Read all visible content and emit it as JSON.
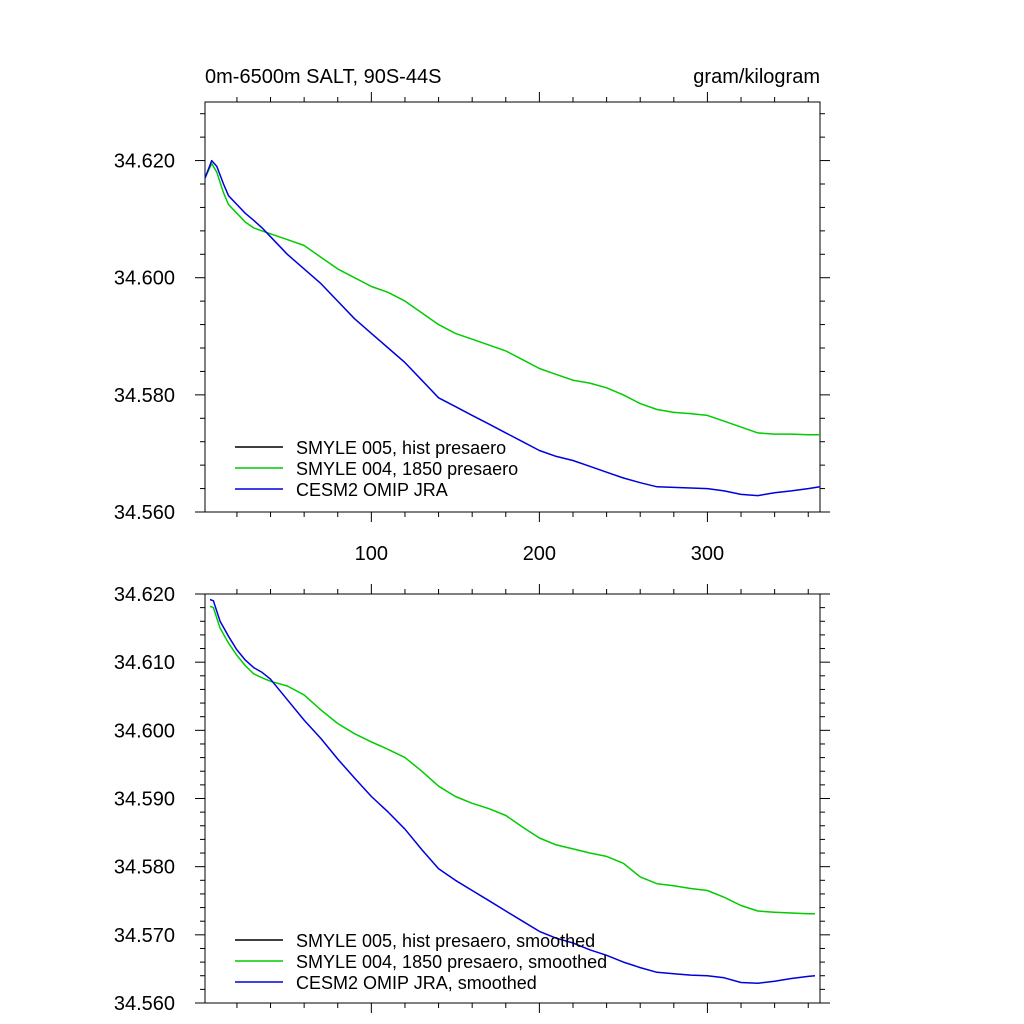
{
  "chart_data": [
    {
      "type": "line",
      "title": "0m-6500m SALT, 90S-44S",
      "units": "gram/kilogram",
      "xlabel": "",
      "ylabel": "",
      "xlim": [
        1,
        367
      ],
      "ylim": [
        34.56,
        34.63
      ],
      "x_ticks": [
        100,
        200,
        300
      ],
      "x_tick_labels": [
        "100",
        "200",
        "300"
      ],
      "y_ticks": [
        34.56,
        34.58,
        34.6,
        34.62
      ],
      "y_tick_labels": [
        "34.560",
        "34.580",
        "34.600",
        "34.620"
      ],
      "legend": [
        "SMYLE 005, hist presaero",
        "SMYLE 004, 1850 presaero",
        "CESM2 OMIP JRA"
      ],
      "legend_position": "bottom-left",
      "series": [
        {
          "name": "SMYLE 005, hist presaero",
          "color": "#000000",
          "x": [],
          "values": []
        },
        {
          "name": "SMYLE 004, 1850 presaero",
          "color": "#00cc00",
          "x": [
            1,
            5,
            8,
            12,
            15,
            20,
            25,
            30,
            35,
            40,
            50,
            60,
            70,
            80,
            90,
            100,
            110,
            120,
            130,
            140,
            150,
            160,
            170,
            180,
            190,
            200,
            210,
            220,
            230,
            240,
            250,
            260,
            270,
            280,
            290,
            300,
            310,
            320,
            330,
            340,
            350,
            360,
            367
          ],
          "values": [
            34.617,
            34.6195,
            34.618,
            34.6145,
            34.6125,
            34.611,
            34.6095,
            34.6085,
            34.608,
            34.6075,
            34.6065,
            34.6055,
            34.6035,
            34.6015,
            34.6,
            34.5985,
            34.5975,
            34.596,
            34.594,
            34.592,
            34.5905,
            34.5895,
            34.5885,
            34.5875,
            34.586,
            34.5845,
            34.5835,
            34.5825,
            34.582,
            34.5812,
            34.58,
            34.5785,
            34.5775,
            34.577,
            34.5768,
            34.5765,
            34.5755,
            34.5745,
            34.5735,
            34.5733,
            34.5733,
            34.5732,
            34.5732
          ]
        },
        {
          "name": "CESM2 OMIP JRA",
          "color": "#0000dd",
          "x": [
            1,
            5,
            8,
            12,
            15,
            20,
            25,
            30,
            35,
            40,
            50,
            60,
            70,
            80,
            90,
            100,
            110,
            120,
            130,
            140,
            150,
            160,
            170,
            180,
            190,
            200,
            210,
            220,
            230,
            240,
            250,
            260,
            270,
            280,
            290,
            300,
            310,
            320,
            330,
            340,
            350,
            360,
            367
          ],
          "values": [
            34.617,
            34.62,
            34.619,
            34.616,
            34.614,
            34.6125,
            34.611,
            34.6098,
            34.6085,
            34.607,
            34.604,
            34.6015,
            34.599,
            34.596,
            34.593,
            34.5905,
            34.588,
            34.5855,
            34.5825,
            34.5795,
            34.578,
            34.5765,
            34.575,
            34.5735,
            34.572,
            34.5705,
            34.5695,
            34.5688,
            34.5678,
            34.5668,
            34.5658,
            34.565,
            34.5643,
            34.5642,
            34.5641,
            34.564,
            34.5636,
            34.563,
            34.5628,
            34.5633,
            34.5636,
            34.564,
            34.5643
          ]
        }
      ]
    },
    {
      "type": "line",
      "title": "",
      "xlabel": "",
      "ylabel": "",
      "xlim": [
        1,
        367
      ],
      "ylim": [
        34.56,
        34.62
      ],
      "x_ticks": [
        100,
        200,
        300
      ],
      "x_tick_labels": [],
      "y_ticks": [
        34.56,
        34.57,
        34.58,
        34.59,
        34.6,
        34.61,
        34.62
      ],
      "y_tick_labels": [
        "34.560",
        "34.570",
        "34.580",
        "34.590",
        "34.600",
        "34.610",
        "34.620"
      ],
      "legend": [
        "SMYLE 005, hist presaero, smoothed",
        "SMYLE 004, 1850 presaero, smoothed",
        "CESM2 OMIP JRA, smoothed"
      ],
      "legend_position": "bottom-left",
      "series": [
        {
          "name": "SMYLE 005, hist presaero, smoothed",
          "color": "#000000",
          "x": [],
          "values": []
        },
        {
          "name": "SMYLE 004, 1850 presaero, smoothed",
          "color": "#00cc00",
          "x": [
            4,
            6,
            10,
            15,
            20,
            25,
            30,
            35,
            40,
            50,
            60,
            70,
            80,
            90,
            100,
            110,
            120,
            130,
            140,
            150,
            160,
            170,
            180,
            190,
            200,
            210,
            220,
            230,
            240,
            250,
            260,
            270,
            280,
            290,
            300,
            310,
            320,
            330,
            340,
            350,
            360,
            364
          ],
          "values": [
            34.6182,
            34.618,
            34.615,
            34.6128,
            34.611,
            34.6095,
            34.6083,
            34.6077,
            34.6072,
            34.6065,
            34.6052,
            34.603,
            34.601,
            34.5995,
            34.5983,
            34.5972,
            34.596,
            34.594,
            34.5918,
            34.5903,
            34.5893,
            34.5885,
            34.5875,
            34.5858,
            34.5842,
            34.5832,
            34.5826,
            34.582,
            34.5815,
            34.5805,
            34.5785,
            34.5775,
            34.5772,
            34.5768,
            34.5765,
            34.5755,
            34.5743,
            34.5735,
            34.5733,
            34.5732,
            34.5731,
            34.5731
          ]
        },
        {
          "name": "CESM2 OMIP JRA, smoothed",
          "color": "#0000dd",
          "x": [
            4,
            6,
            10,
            15,
            20,
            25,
            30,
            35,
            40,
            50,
            60,
            70,
            80,
            90,
            100,
            110,
            120,
            130,
            140,
            150,
            160,
            170,
            180,
            190,
            200,
            210,
            220,
            230,
            240,
            250,
            260,
            270,
            280,
            290,
            300,
            310,
            320,
            330,
            340,
            350,
            360,
            364
          ],
          "values": [
            34.6192,
            34.619,
            34.616,
            34.6138,
            34.6118,
            34.6103,
            34.6092,
            34.6085,
            34.6075,
            34.6045,
            34.6015,
            34.5988,
            34.5958,
            34.593,
            34.5903,
            34.588,
            34.5855,
            34.5825,
            34.5797,
            34.578,
            34.5765,
            34.575,
            34.5735,
            34.572,
            34.5705,
            34.5695,
            34.5688,
            34.5678,
            34.567,
            34.566,
            34.5652,
            34.5645,
            34.5643,
            34.5641,
            34.564,
            34.5637,
            34.563,
            34.5629,
            34.5632,
            34.5636,
            34.5639,
            34.564
          ]
        }
      ]
    }
  ]
}
